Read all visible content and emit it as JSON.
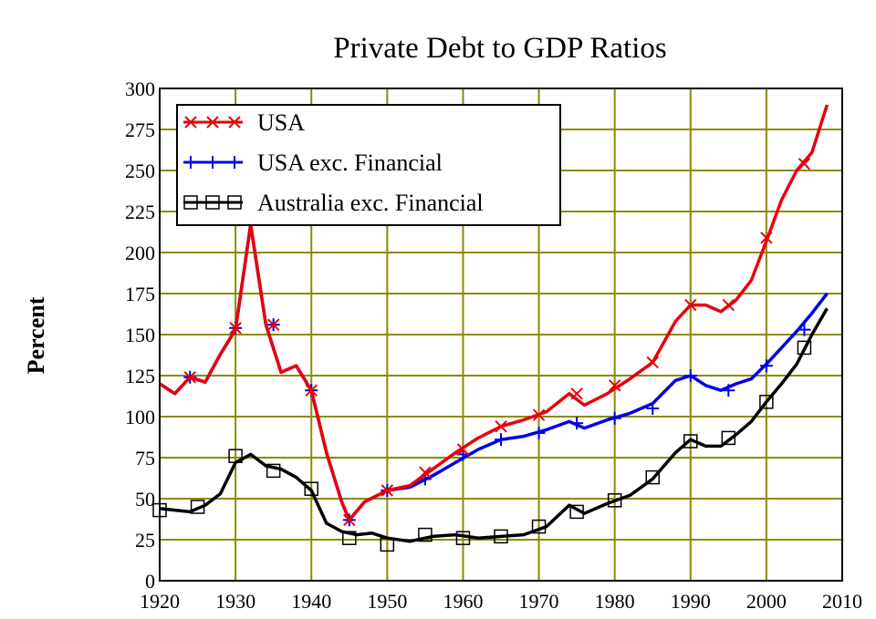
{
  "chart_data": {
    "type": "line",
    "title": "Private Debt to GDP Ratios",
    "xlabel": "",
    "ylabel": "Percent",
    "xlim": [
      1920,
      2010
    ],
    "ylim": [
      0,
      300
    ],
    "x_ticks": [
      1920,
      1930,
      1940,
      1950,
      1960,
      1970,
      1980,
      1990,
      2000,
      2010
    ],
    "y_ticks": [
      0,
      25,
      50,
      75,
      100,
      125,
      150,
      175,
      200,
      225,
      250,
      275,
      300
    ],
    "grid": true,
    "grid_color": "#8b8b00",
    "legend_position": "top-left",
    "series": [
      {
        "name": "USA",
        "color": "#e8000b",
        "marker": "x",
        "x": [
          1920,
          1922,
          1924,
          1926,
          1928,
          1930,
          1932,
          1934,
          1936,
          1938,
          1940,
          1942,
          1944,
          1945,
          1947,
          1950,
          1953,
          1956,
          1959,
          1962,
          1965,
          1968,
          1971,
          1974,
          1976,
          1979,
          1982,
          1985,
          1988,
          1990,
          1992,
          1994,
          1996,
          1998,
          2000,
          2002,
          2004,
          2006,
          2008
        ],
        "y": [
          120,
          114,
          124,
          121,
          138,
          153,
          217,
          156,
          127,
          131,
          116,
          78,
          48,
          37,
          48,
          55,
          58,
          68,
          78,
          87,
          94,
          98,
          103,
          114,
          107,
          114,
          123,
          133,
          158,
          168,
          168,
          164,
          171,
          183,
          207,
          232,
          250,
          261,
          290
        ],
        "markers_x": [
          1924,
          1930,
          1935,
          1940,
          1945,
          1950,
          1955,
          1960,
          1965,
          1970,
          1975,
          1980,
          1985,
          1990,
          1995,
          2000,
          2005
        ],
        "markers_y": [
          124,
          154,
          156,
          116,
          37,
          55,
          66,
          80,
          94,
          101,
          114,
          119,
          133,
          168,
          168,
          209,
          254
        ]
      },
      {
        "name": "USA exc. Financial",
        "color": "#0000e8",
        "marker": "+",
        "x": [
          1920,
          1922,
          1924,
          1926,
          1928,
          1930,
          1932,
          1934,
          1936,
          1938,
          1940,
          1942,
          1944,
          1945,
          1947,
          1950,
          1953,
          1956,
          1959,
          1962,
          1965,
          1968,
          1971,
          1974,
          1976,
          1979,
          1982,
          1985,
          1988,
          1990,
          1992,
          1994,
          1996,
          1998,
          2000,
          2002,
          2004,
          2006,
          2008
        ],
        "y": [
          120,
          114,
          124,
          121,
          138,
          153,
          217,
          156,
          127,
          131,
          116,
          78,
          48,
          37,
          48,
          55,
          57,
          64,
          72,
          80,
          86,
          88,
          92,
          97,
          93,
          98,
          102,
          108,
          122,
          125,
          119,
          116,
          120,
          123,
          132,
          142,
          152,
          163,
          175
        ],
        "markers_x": [
          1924,
          1930,
          1935,
          1940,
          1945,
          1950,
          1955,
          1960,
          1965,
          1970,
          1975,
          1980,
          1985,
          1990,
          1995,
          2000,
          2005
        ],
        "markers_y": [
          124,
          154,
          156,
          116,
          37,
          55,
          62,
          77,
          86,
          90,
          96,
          99,
          105,
          125,
          116,
          131,
          153
        ]
      },
      {
        "name": "Australia exc. Financial",
        "color": "#000000",
        "marker": "square",
        "x": [
          1920,
          1922,
          1924,
          1926,
          1928,
          1930,
          1932,
          1934,
          1936,
          1938,
          1940,
          1942,
          1944,
          1946,
          1948,
          1950,
          1953,
          1956,
          1959,
          1962,
          1965,
          1968,
          1971,
          1974,
          1976,
          1979,
          1982,
          1985,
          1988,
          1990,
          1992,
          1994,
          1996,
          1998,
          2000,
          2002,
          2004,
          2006,
          2008
        ],
        "y": [
          44,
          43,
          42,
          46,
          53,
          72,
          77,
          70,
          68,
          63,
          55,
          35,
          30,
          28,
          29,
          26,
          24,
          27,
          28,
          26,
          27,
          28,
          33,
          46,
          41,
          47,
          52,
          62,
          78,
          86,
          82,
          82,
          89,
          97,
          109,
          120,
          132,
          150,
          166
        ],
        "markers_x": [
          1920,
          1925,
          1930,
          1935,
          1940,
          1945,
          1950,
          1955,
          1960,
          1965,
          1970,
          1975,
          1980,
          1985,
          1990,
          1995,
          2000,
          2005
        ],
        "markers_y": [
          43,
          45,
          76,
          67,
          56,
          26,
          22,
          28,
          26,
          27,
          33,
          42,
          49,
          63,
          85,
          87,
          109,
          142
        ]
      }
    ]
  }
}
